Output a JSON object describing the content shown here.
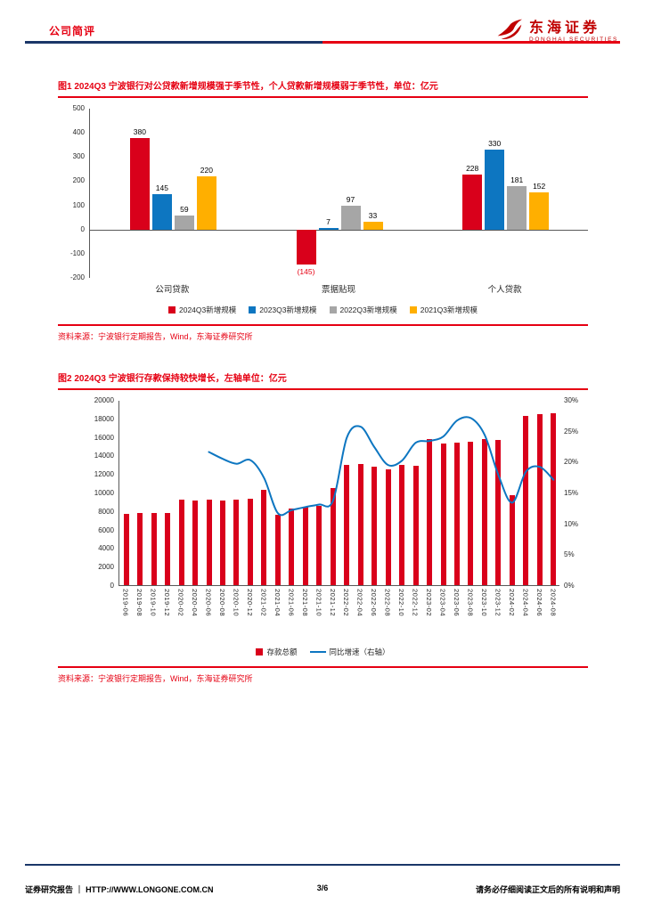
{
  "header": {
    "category": "公司简评",
    "brand_cn": "东海证券",
    "brand_en": "DONGHAI SECURITIES"
  },
  "footer": {
    "left_label": "证券研究报告",
    "separator": "｜",
    "url": "HTTP://WWW.LONGONE.COM.CN",
    "page_num": "3/6",
    "right_note": "请务必仔细阅读正文后的所有说明和声明"
  },
  "colors": {
    "accent_red": "#e60012",
    "navy": "#1a3668",
    "bar_red": "#d9001b",
    "bar_blue": "#0d76c1",
    "bar_gray": "#a6a6a6",
    "bar_orange": "#ffaf00"
  },
  "chart_data": [
    {
      "id": "figure1",
      "type": "bar",
      "title": "图1  2024Q3 宁波银行对公贷款新增规模强于季节性，个人贷款新增规模弱于季节性，单位：亿元",
      "source": "资料来源：宁波银行定期报告，Wind，东海证券研究所",
      "categories": [
        "公司贷款",
        "票据贴现",
        "个人贷款"
      ],
      "series": [
        {
          "name": "2024Q3新增规模",
          "color": "#d9001b",
          "values": [
            380,
            -145,
            228
          ]
        },
        {
          "name": "2023Q3新增规模",
          "color": "#0d76c1",
          "values": [
            145,
            7,
            330
          ]
        },
        {
          "name": "2022Q3新增规模",
          "color": "#a6a6a6",
          "values": [
            59,
            97,
            181
          ]
        },
        {
          "name": "2021Q3新增规模",
          "color": "#ffaf00",
          "values": [
            220,
            33,
            152
          ]
        }
      ],
      "ylim": [
        -200,
        500
      ],
      "ytick_step": 100,
      "grid": false,
      "legend_position": "bottom"
    },
    {
      "id": "figure2",
      "type": "bar+line",
      "title": "图2  2024Q3 宁波银行存款保持较快增长，左轴单位：亿元",
      "source": "资料来源：宁波银行定期报告，Wind，东海证券研究所",
      "categories": [
        "2019-06",
        "2019-08",
        "2019-10",
        "2019-12",
        "2020-02",
        "2020-04",
        "2020-06",
        "2020-08",
        "2020-10",
        "2020-12",
        "2021-02",
        "2021-04",
        "2021-06",
        "2021-08",
        "2021-10",
        "2021-12",
        "2022-02",
        "2022-04",
        "2022-06",
        "2022-08",
        "2022-10",
        "2022-12",
        "2023-02",
        "2023-04",
        "2023-06",
        "2023-08",
        "2023-10",
        "2023-12",
        "2024-02",
        "2024-04",
        "2024-06",
        "2024-08"
      ],
      "bar_series": {
        "name": "存款总额",
        "color": "#d9001b",
        "values": [
          7700,
          7800,
          7750,
          7800,
          9200,
          9150,
          9250,
          9150,
          9200,
          9300,
          10300,
          7600,
          8300,
          8500,
          8600,
          10500,
          13000,
          13050,
          12800,
          12500,
          13000,
          12900,
          15800,
          15300,
          15400,
          15500,
          15800,
          15700,
          9700,
          18300,
          18500,
          18600
        ]
      },
      "line_series": {
        "name": "同比增速（右轴）",
        "color": "#0d76c1",
        "values": [
          null,
          null,
          null,
          null,
          null,
          null,
          21.7,
          20.6,
          19.8,
          20.4,
          17.5,
          11.8,
          12.3,
          12.8,
          13.2,
          13.8,
          24.0,
          25.8,
          22.5,
          19.6,
          20.3,
          23.2,
          23.5,
          24.2,
          26.8,
          27.2,
          24.5,
          18.0,
          13.5,
          18.5,
          19.3,
          17.2
        ]
      },
      "left_ylim": [
        0,
        20000
      ],
      "left_tick_step": 2000,
      "right_ylim": [
        0,
        30
      ],
      "right_tick_step": 5,
      "right_tick_suffix": "%",
      "grid": false,
      "legend_position": "bottom"
    }
  ]
}
